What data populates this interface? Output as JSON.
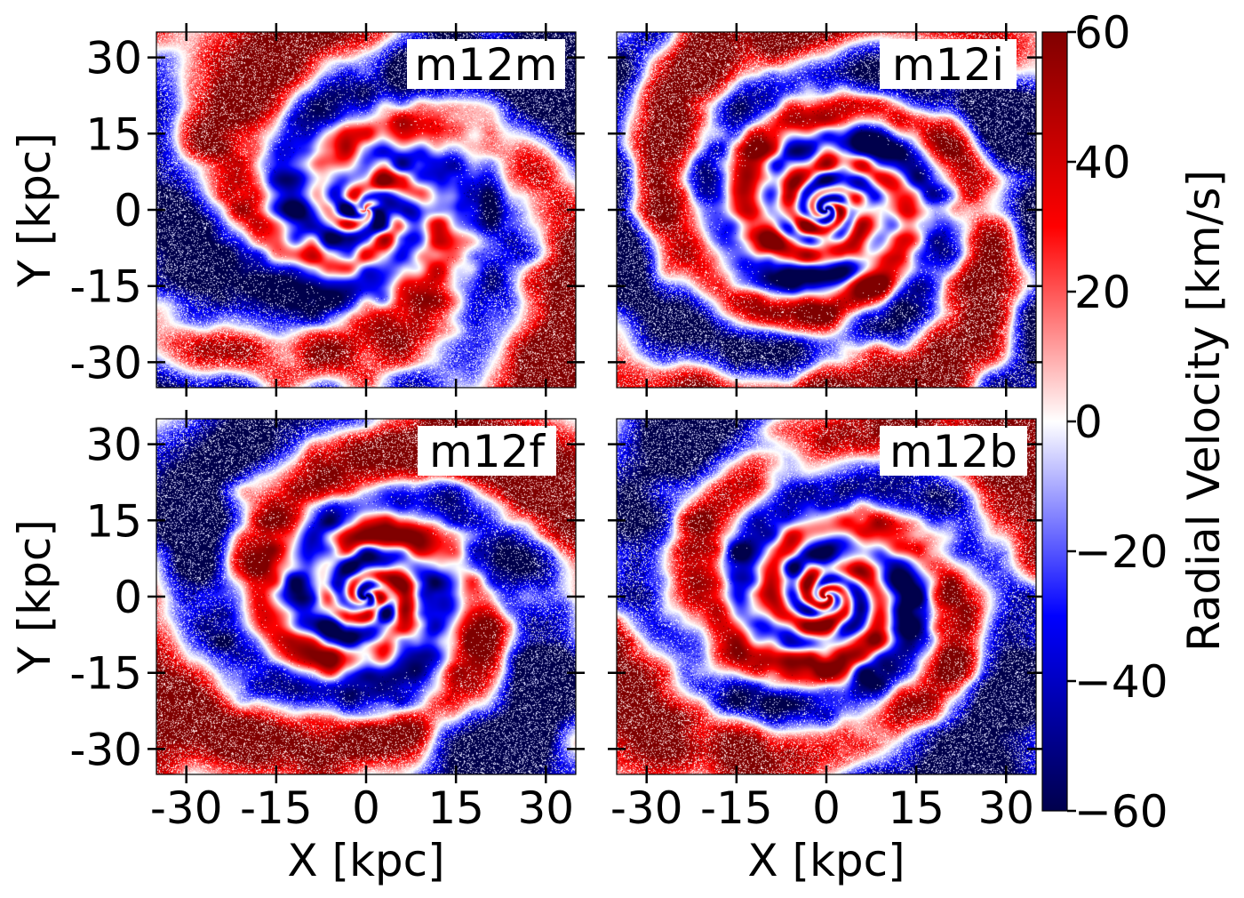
{
  "chart_data": {
    "type": "heatmap",
    "layout": "2x2 grid, shared axes",
    "panels": [
      {
        "label": "m12m",
        "arms": 3,
        "twist": 2.2,
        "seed": 11,
        "inner_mix": 0.75,
        "outer_sign": 1,
        "band": 0.0
      },
      {
        "label": "m12i",
        "arms": 2,
        "twist": 3.2,
        "seed": 23,
        "inner_mix": 0.55,
        "outer_sign": -1,
        "band": 0.5
      },
      {
        "label": "m12f",
        "arms": 2,
        "twist": 2.6,
        "seed": 37,
        "inner_mix": 0.6,
        "outer_sign": -1,
        "band": -0.5
      },
      {
        "label": "m12b",
        "arms": 2,
        "twist": 2.8,
        "seed": 53,
        "inner_mix": 0.5,
        "outer_sign": 1,
        "band": 0.3
      }
    ],
    "x_axis": {
      "label": "X [kpc]",
      "range": [
        -35,
        35
      ],
      "ticks": [
        -30,
        -15,
        0,
        15,
        30
      ],
      "tick_labels": [
        "-30",
        "-15",
        "0",
        "15",
        "30"
      ]
    },
    "y_axis": {
      "label": "Y [kpc]",
      "range": [
        -35,
        35
      ],
      "ticks": [
        -30,
        -15,
        0,
        15,
        30
      ],
      "tick_labels": [
        "-30",
        "-15",
        "0",
        "15",
        "30"
      ]
    },
    "colorbar": {
      "label": "Radial Velocity [km/s]",
      "range": [
        -60,
        60
      ],
      "ticks": [
        60,
        40,
        20,
        0,
        -20,
        -40,
        -60
      ],
      "tick_labels": [
        "60",
        "40",
        "20",
        "0",
        "−20",
        "−40",
        "−60"
      ],
      "colormap": "seismic",
      "colors": {
        "min": "#00004c",
        "mid_low": "#0000ff",
        "zero": "#ffffff",
        "mid_high": "#ff0000",
        "max": "#800000"
      }
    },
    "legend": "none",
    "grid": false
  }
}
